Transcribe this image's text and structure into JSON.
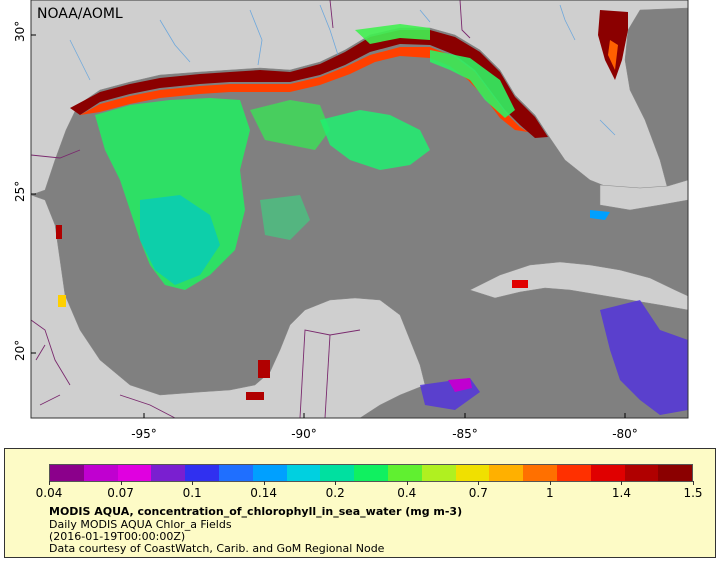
{
  "map": {
    "watermark": "NOAA/AOML",
    "lat_labels": [
      "30°",
      "25°",
      "20°"
    ],
    "lon_labels": [
      "-95°",
      "-90°",
      "-85°",
      "-80°"
    ],
    "colors": {
      "ocean_nodata": "#808080",
      "land": "#cfcfcf",
      "border_line": "#7a2a6e",
      "river_line": "#6fa8dc"
    }
  },
  "legend": {
    "colorbar_ticks": [
      "0.04",
      "0.07",
      "0.1",
      "0.14",
      "0.2",
      "0.4",
      "0.7",
      "1",
      "1.4",
      "1.5"
    ],
    "colorbar_colors": [
      "#8b008b",
      "#c000d0",
      "#e000e0",
      "#7a1fd0",
      "#3030f0",
      "#1f6fff",
      "#00a0ff",
      "#00d0e0",
      "#00e0a0",
      "#10f060",
      "#60f030",
      "#b0f020",
      "#f0e000",
      "#ffb000",
      "#ff7000",
      "#ff3000",
      "#e00000",
      "#b00000",
      "#8b0000"
    ],
    "title": "MODIS AQUA, concentration_of_chlorophyll_in_sea_water (mg m-3)",
    "subtitle1": "Daily MODIS AQUA Chlor_a Fields",
    "subtitle2": "(2016-01-19T00:00:00Z)",
    "credit": "Data courtesy of CoastWatch, Carib. and GoM Regional Node"
  }
}
